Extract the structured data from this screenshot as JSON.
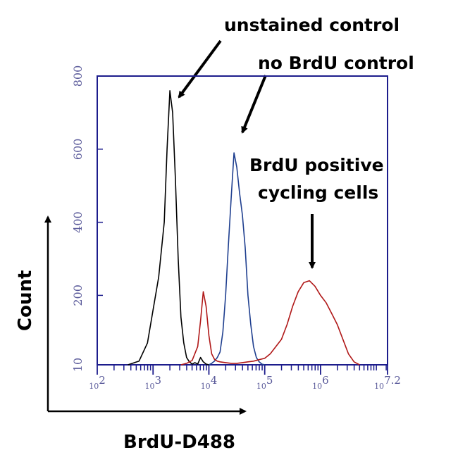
{
  "chart_data": {
    "type": "line",
    "xscale": "log",
    "xlim": [
      100,
      15848932
    ],
    "ylim": [
      10,
      800
    ],
    "grid": false,
    "xlabel": "BrdU-D488",
    "ylabel": "Count",
    "x_ticks": [
      {
        "value": 100,
        "label": "10^2"
      },
      {
        "value": 1000,
        "label": "10^3"
      },
      {
        "value": 10000,
        "label": "10^4"
      },
      {
        "value": 100000,
        "label": "10^5"
      },
      {
        "value": 1000000,
        "label": "10^6"
      },
      {
        "value": 15848932,
        "label": "10^7.2"
      }
    ],
    "y_ticks": [
      10,
      200,
      400,
      600,
      800
    ],
    "colors": {
      "frame": "#1c1c8c",
      "unstained": "#000000",
      "no_brdu": "#1f3f8f",
      "brdu_pos": "#b01818",
      "ticklabel": "#5a5a9a"
    },
    "series": [
      {
        "key": "unstained",
        "x": [
          355,
          560,
          795,
          1000,
          1260,
          1585,
          1780,
          2000,
          2240,
          2510,
          2820,
          3160,
          3550,
          3980,
          4470,
          5010,
          5620,
          6310,
          7080,
          7940,
          8910,
          10000
        ],
        "y": [
          10,
          20,
          70,
          160,
          250,
          400,
          600,
          760,
          700,
          520,
          300,
          140,
          70,
          30,
          18,
          12,
          16,
          12,
          30,
          18,
          12,
          10
        ]
      },
      {
        "key": "no_brdu",
        "x": [
          10000,
          11220,
          12590,
          14130,
          15850,
          17780,
          19950,
          22390,
          25120,
          28180,
          31620,
          35480,
          39810,
          44670,
          50120,
          56230,
          63100,
          70800,
          79430,
          89130,
          100000
        ],
        "y": [
          10,
          14,
          20,
          30,
          45,
          100,
          200,
          340,
          470,
          590,
          550,
          480,
          420,
          330,
          200,
          120,
          60,
          30,
          18,
          12,
          10
        ]
      },
      {
        "key": "brdu_pos",
        "x": [
          3160,
          3980,
          5010,
          6310,
          7080,
          7940,
          8910,
          10000,
          11220,
          12590,
          14130,
          15850,
          19950,
          25120,
          31620,
          39810,
          50120,
          63100,
          79430,
          100000,
          125890,
          158490,
          199530,
          251190,
          316230,
          398110,
          501190,
          630960,
          794330,
          1000000,
          1258930,
          1584890,
          1995260,
          2511890,
          3162280,
          3981070,
          5011870
        ],
        "y": [
          10,
          14,
          22,
          60,
          130,
          210,
          170,
          90,
          40,
          25,
          20,
          18,
          16,
          14,
          14,
          16,
          18,
          20,
          24,
          28,
          40,
          60,
          80,
          120,
          170,
          210,
          235,
          240,
          225,
          200,
          180,
          150,
          120,
          80,
          40,
          18,
          10
        ]
      }
    ],
    "annotations": [
      {
        "key": "unstained",
        "lines": [
          "unstained control"
        ]
      },
      {
        "key": "no_brdu",
        "lines": [
          "no BrdU control"
        ]
      },
      {
        "key": "brdu_pos",
        "lines": [
          "BrdU positive",
          "cycling cells"
        ]
      }
    ]
  }
}
